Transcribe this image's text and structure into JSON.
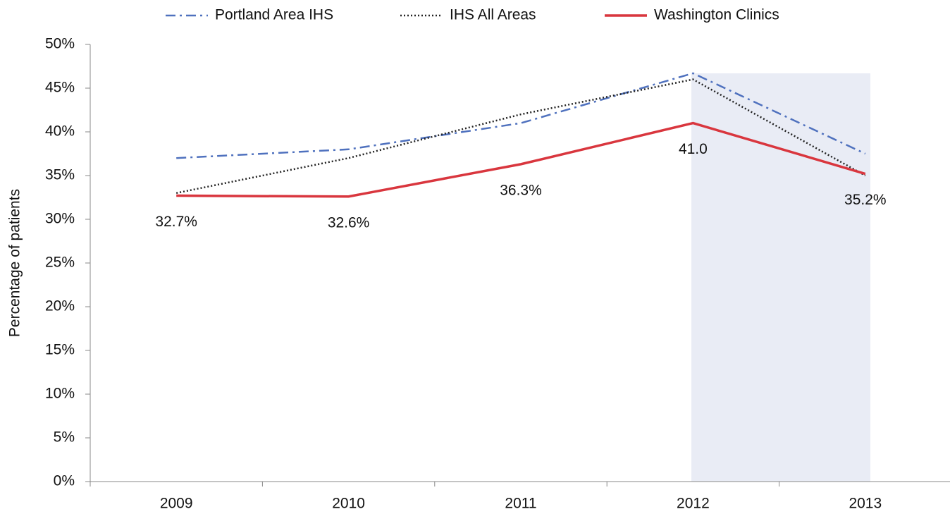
{
  "chart_data": {
    "type": "line",
    "y_label": "Percentage of patients",
    "categories": [
      "2009",
      "2010",
      "2011",
      "2012",
      "2013"
    ],
    "series": [
      {
        "name": "Portland Area IHS",
        "color": "#4f71be",
        "dash": "dashdot",
        "values": [
          37,
          38,
          41,
          46.7,
          37.5
        ]
      },
      {
        "name": "IHS All Areas",
        "color": "#222222",
        "dash": "dotted",
        "values": [
          33,
          37,
          42,
          46,
          35
        ]
      },
      {
        "name": "Washington Clinics",
        "color": "#d9363e",
        "dash": "solid",
        "values": [
          32.7,
          32.6,
          36.3,
          41.0,
          35.2
        ],
        "value_labels": [
          "32.7%",
          "32.6%",
          "36.3%",
          "41.0",
          "35.2%"
        ]
      }
    ],
    "ylim": [
      0,
      50
    ],
    "yticks": [
      {
        "value": 0,
        "label": "0%"
      },
      {
        "value": 5,
        "label": "5%"
      },
      {
        "value": 10,
        "label": "10%"
      },
      {
        "value": 15,
        "label": "15%"
      },
      {
        "value": 20,
        "label": "20%"
      },
      {
        "value": 25,
        "label": "25%"
      },
      {
        "value": 30,
        "label": "30%"
      },
      {
        "value": 35,
        "label": "35%"
      },
      {
        "value": 40,
        "label": "40%"
      },
      {
        "value": 45,
        "label": "45%"
      },
      {
        "value": 50,
        "label": "50%"
      }
    ],
    "legend": "top"
  }
}
